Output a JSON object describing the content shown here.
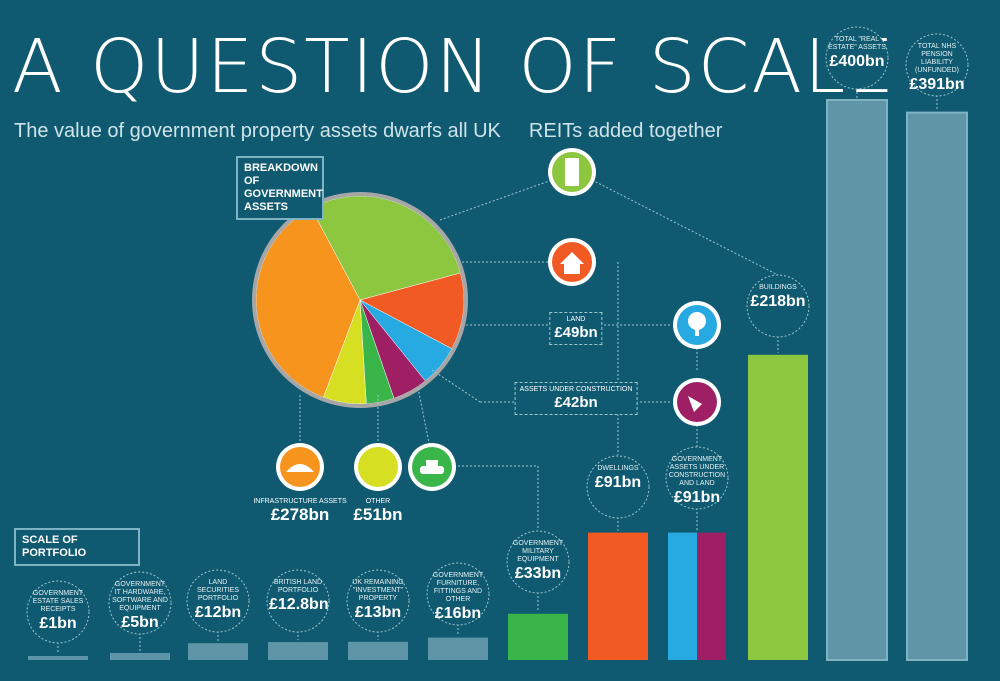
{
  "header": {
    "title": "A QUESTION OF SCALE",
    "subtitle_a": "The value of government property assets dwarfs all UK",
    "subtitle_b": "REITs added together"
  },
  "pie_box_label": "BREAKDOWN OF GOVERNMENT ASSETS",
  "scale_box_label": "SCALE OF PORTFOLIO",
  "colors": {
    "background": "#0f5a70",
    "bar_pale": "#5e96a8",
    "green": "#8dc63f",
    "orange": "#f7941d",
    "red_orange": "#f15a22",
    "blue": "#27aae1",
    "purple": "#9e1f63",
    "yellow": "#d7df23",
    "mid_green": "#39b54a"
  },
  "icons": {
    "buildings": "building-icon",
    "dwellings": "house-icon",
    "land": "tree-icon",
    "construction": "trowel-icon",
    "infrastructure": "bridge-icon",
    "other": "circle-icon",
    "military": "tank-icon"
  },
  "chart_data": [
    {
      "type": "pie",
      "title": "BREAKDOWN OF GOVERNMENT ASSETS",
      "categories": [
        "Buildings",
        "Dwellings",
        "Land",
        "Assets under construction",
        "Government military equipment",
        "Other",
        "Infrastructure assets"
      ],
      "values": [
        218,
        91,
        49,
        42,
        33,
        51,
        278
      ],
      "labels": {
        "infrastructure": {
          "text": "INFRASTRUCTURE ASSETS",
          "value": "£278bn"
        },
        "other": {
          "text": "OTHER",
          "value": "£51bn"
        },
        "land": {
          "text": "LAND",
          "value": "£49bn"
        },
        "construction": {
          "text": "ASSETS UNDER CONSTRUCTION",
          "value": "£42bn"
        }
      }
    },
    {
      "type": "bar",
      "title": "SCALE OF PORTFOLIO",
      "categories": [
        "GOVERNMENT ESTATE SALES RECEIPTS",
        "GOVERNMENT IT HARDWARE, SOFTWARE AND EQUIPMENT",
        "LAND SECURITIES PORTFOLIO",
        "BRITISH LAND PORTFOLIO",
        "UK REMAINING \"INVESTMENT\" PROPERTY",
        "GOVERNMENT FURNITURE, FITTINGS AND OTHER",
        "GOVERNMENT MILITARY EQUIPMENT",
        "DWELLINGS",
        "GOVERNMENT ASSETS UNDER CONSTRUCTION AND LAND",
        "BUILDINGS",
        "TOTAL \"REAL ESTATE\" ASSETS",
        "TOTAL NHS PENSION LIABILITY (UNFUNDED)"
      ],
      "values": [
        1,
        5,
        12,
        12.8,
        13,
        16,
        33,
        91,
        91,
        218,
        400,
        391
      ],
      "value_labels": [
        "£1bn",
        "£5bn",
        "£12bn",
        "£12.8bn",
        "£13bn",
        "£16bn",
        "£33bn",
        "£91bn",
        "£91bn",
        "£218bn",
        "£400bn",
        "£391bn"
      ],
      "split_bar": {
        "index": 8,
        "parts": [
          {
            "name": "Land",
            "value": 49
          },
          {
            "name": "Assets under construction",
            "value": 42
          }
        ]
      }
    }
  ]
}
